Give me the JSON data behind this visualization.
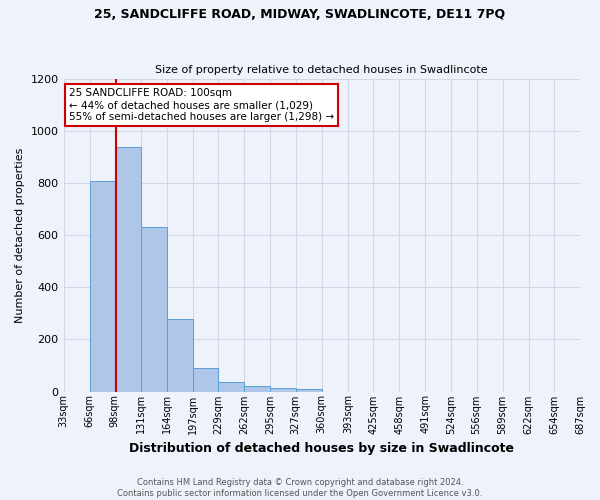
{
  "title1": "25, SANDCLIFFE ROAD, MIDWAY, SWADLINCOTE, DE11 7PQ",
  "title2": "Size of property relative to detached houses in Swadlincote",
  "xlabel": "Distribution of detached houses by size in Swadlincote",
  "ylabel": "Number of detached properties",
  "footer1": "Contains HM Land Registry data © Crown copyright and database right 2024.",
  "footer2": "Contains public sector information licensed under the Open Government Licence v3.0.",
  "annotation_line1": "25 SANDCLIFFE ROAD: 100sqm",
  "annotation_line2": "← 44% of detached houses are smaller (1,029)",
  "annotation_line3": "55% of semi-detached houses are larger (1,298) →",
  "bin_edges": [
    33,
    66,
    98,
    131,
    164,
    197,
    229,
    262,
    295,
    327,
    360,
    393,
    425,
    458,
    491,
    524,
    556,
    589,
    622,
    654,
    687
  ],
  "bar_heights": [
    0,
    810,
    940,
    630,
    280,
    90,
    35,
    20,
    12,
    10,
    0,
    0,
    0,
    0,
    0,
    0,
    0,
    0,
    0,
    0
  ],
  "bar_color": "#aec6e8",
  "bar_edge_color": "#5a9fd4",
  "grid_color": "#d0d8e8",
  "bg_color": "#eef2fa",
  "red_line_x": 100,
  "annotation_box_color": "#ffffff",
  "annotation_border_color": "#cc0000",
  "ylim": [
    0,
    1200
  ],
  "tick_labels": [
    "33sqm",
    "66sqm",
    "98sqm",
    "131sqm",
    "164sqm",
    "197sqm",
    "229sqm",
    "262sqm",
    "295sqm",
    "327sqm",
    "360sqm",
    "393sqm",
    "425sqm",
    "458sqm",
    "491sqm",
    "524sqm",
    "556sqm",
    "589sqm",
    "622sqm",
    "654sqm",
    "687sqm"
  ]
}
